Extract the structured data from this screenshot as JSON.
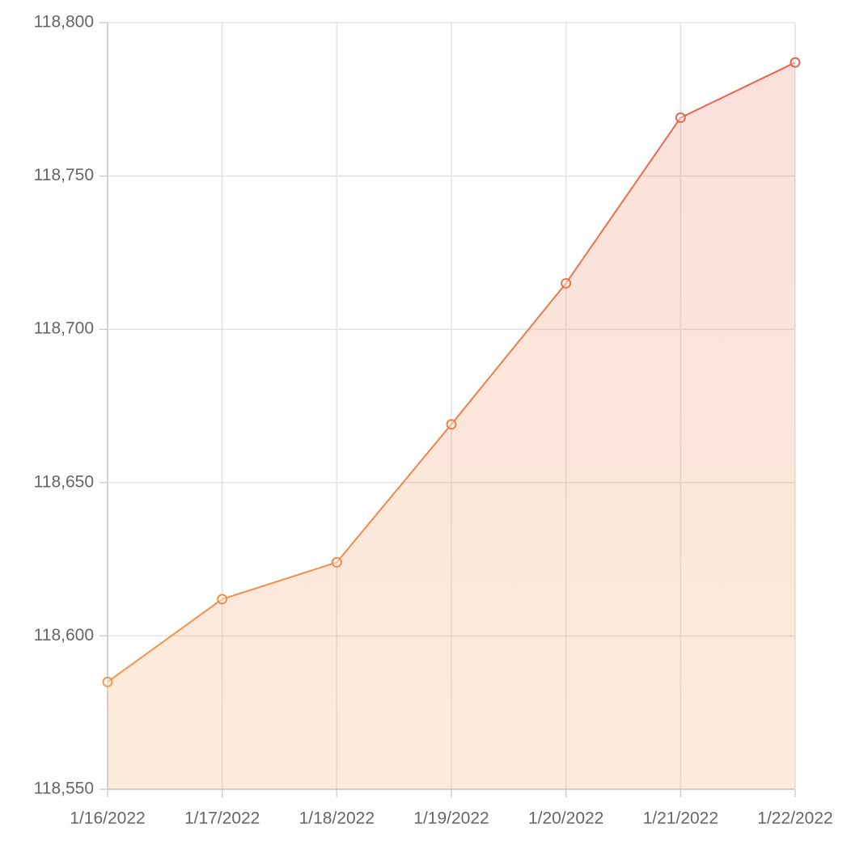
{
  "chart_data": {
    "type": "area",
    "categories": [
      "1/16/2022",
      "1/17/2022",
      "1/18/2022",
      "1/19/2022",
      "1/20/2022",
      "1/21/2022",
      "1/22/2022"
    ],
    "values": [
      118585,
      118612,
      118624,
      118669,
      118715,
      118769,
      118787
    ],
    "gradient_colors": [
      "#f5a04a",
      "#e8604a"
    ],
    "ylim": [
      118550,
      118800
    ],
    "yticks": [
      {
        "value": 118550,
        "label": "118,550"
      },
      {
        "value": 118600,
        "label": "118,600"
      },
      {
        "value": 118650,
        "label": "118,650"
      },
      {
        "value": 118700,
        "label": "118,700"
      },
      {
        "value": 118750,
        "label": "118,750"
      },
      {
        "value": 118800,
        "label": "118,800"
      }
    ],
    "grid": true
  }
}
